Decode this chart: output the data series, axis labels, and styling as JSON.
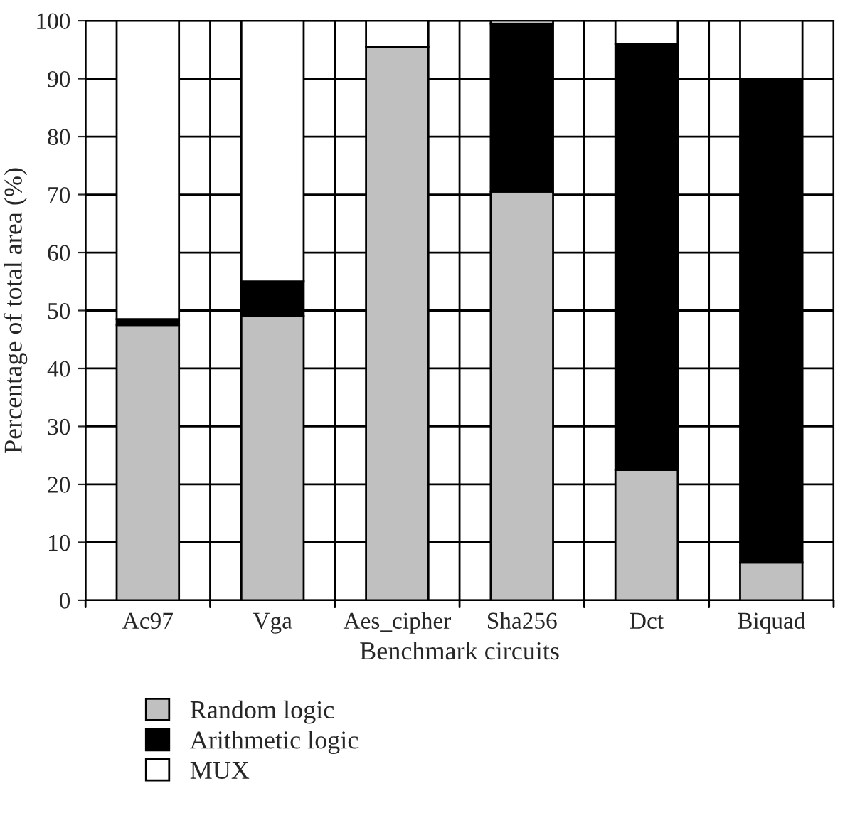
{
  "chart_data": {
    "type": "bar",
    "stacked": true,
    "xlabel": "Benchmark circuits",
    "ylabel": "Percentage of total area (%)",
    "categories": [
      "Ac97",
      "Vga",
      "Aes_cipher",
      "Sha256",
      "Dct",
      "Biquad"
    ],
    "series": [
      {
        "name": "Random logic",
        "color": "#c0c0c0",
        "values": [
          47.5,
          49,
          95.5,
          70.5,
          22.5,
          6.5
        ]
      },
      {
        "name": "Arithmetic logic",
        "color": "#000000",
        "values": [
          1,
          6,
          0,
          29,
          73.5,
          83.5
        ]
      },
      {
        "name": "MUX",
        "color": "#ffffff",
        "values": [
          51.5,
          45,
          4.5,
          0.5,
          4,
          10
        ]
      }
    ],
    "ylim": [
      0,
      100
    ],
    "yticks": [
      0,
      10,
      20,
      30,
      40,
      50,
      60,
      70,
      80,
      90,
      100
    ],
    "grid": true,
    "legend": "bottom"
  }
}
